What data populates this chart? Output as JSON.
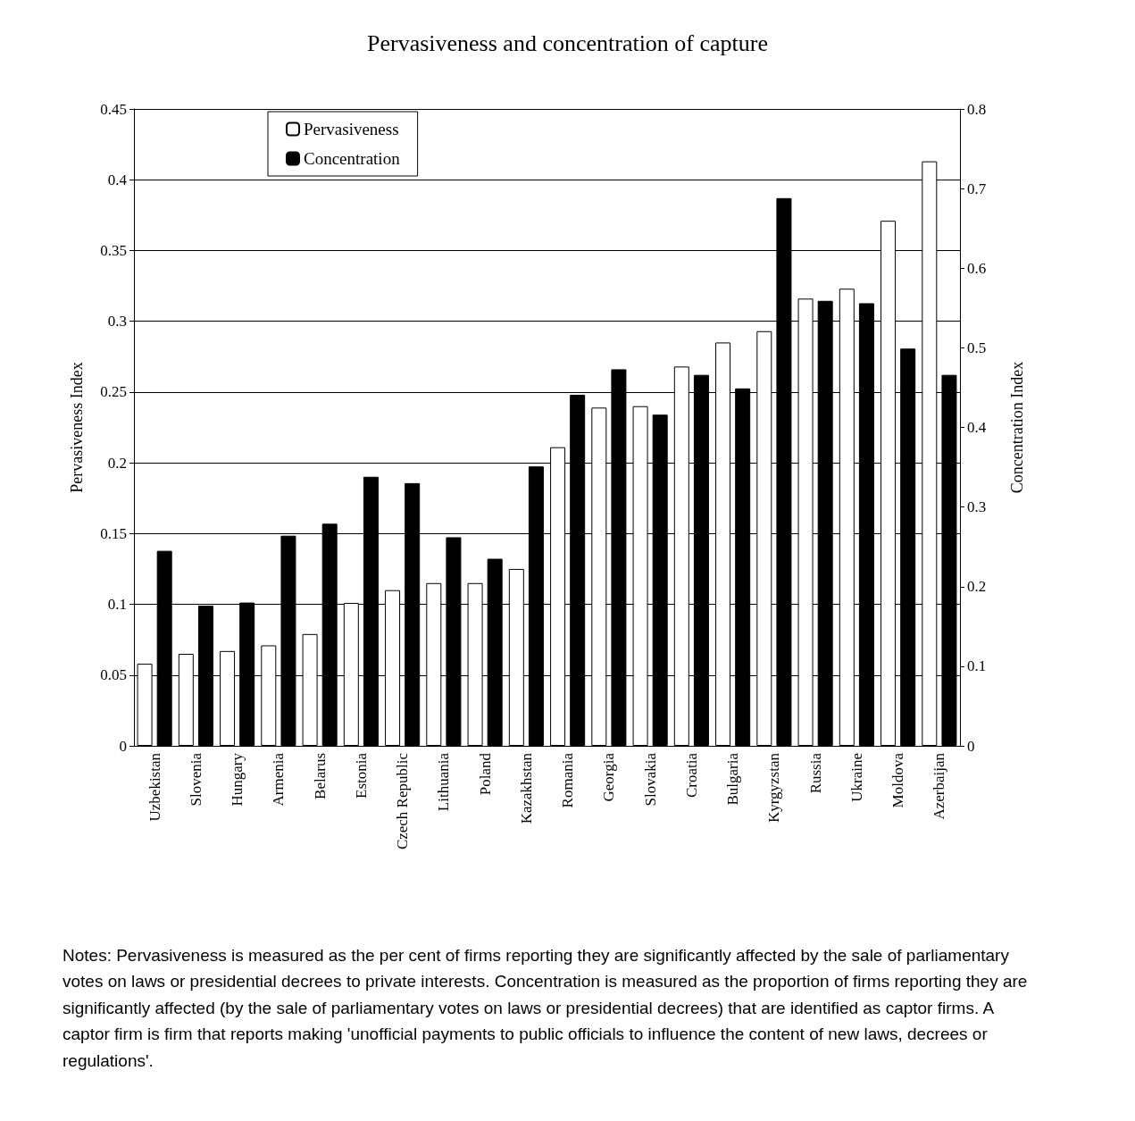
{
  "chart_data": {
    "type": "bar",
    "title": "Pervasiveness and concentration of capture",
    "ylabel": "Pervasiveness Index",
    "y2label": "Concentration Index",
    "categories": [
      "Uzbekistan",
      "Slovenia",
      "Hungary",
      "Armenia",
      "Belarus",
      "Estonia",
      "Czech Republic",
      "Lithuania",
      "Poland",
      "Kazakhstan",
      "Romania",
      "Georgia",
      "Slovakia",
      "Croatia",
      "Bulgaria",
      "Kyrgyzstan",
      "Russia",
      "Ukraine",
      "Moldova",
      "Azerbaijan"
    ],
    "series": [
      {
        "name": "Pervasiveness",
        "color": "#ffffff",
        "values": [
          0.058,
          0.065,
          0.067,
          0.071,
          0.079,
          0.101,
          0.11,
          0.115,
          0.115,
          0.125,
          0.211,
          0.239,
          0.24,
          0.268,
          0.285,
          0.293,
          0.316,
          0.323,
          0.371,
          0.413
        ]
      },
      {
        "name": "Concentration",
        "color": "#000000",
        "axis": "y2",
        "values": [
          0.245,
          0.176,
          0.18,
          0.264,
          0.279,
          0.338,
          0.33,
          0.262,
          0.235,
          0.351,
          0.441,
          0.473,
          0.416,
          0.466,
          0.449,
          0.688,
          0.559,
          0.556,
          0.499,
          0.466
        ]
      }
    ],
    "ylim": [
      0,
      0.45
    ],
    "yticks": [
      0,
      0.05,
      0.1,
      0.15,
      0.2,
      0.25,
      0.3,
      0.35,
      0.4,
      0.45
    ],
    "y2lim": [
      0,
      0.8
    ],
    "y2ticks": [
      0,
      0.1,
      0.2,
      0.3,
      0.4,
      0.5,
      0.6,
      0.7,
      0.8
    ],
    "grid": "y",
    "legend": "top left",
    "annotations": [
      "Notes: Pervasiveness is measured as the per cent of firms reporting they are significantly affected by the sale of parliamentary votes on laws or presidential decrees to private interests. Concentration is measured as the proportion of firms reporting they are significantly affected (by the sale of parliamentary votes on laws or presidential decrees) that are identified as captor firms. A captor firm is firm that reports making 'unofficial payments to public officials to influence the content of new laws, decrees or regulations'."
    ]
  }
}
